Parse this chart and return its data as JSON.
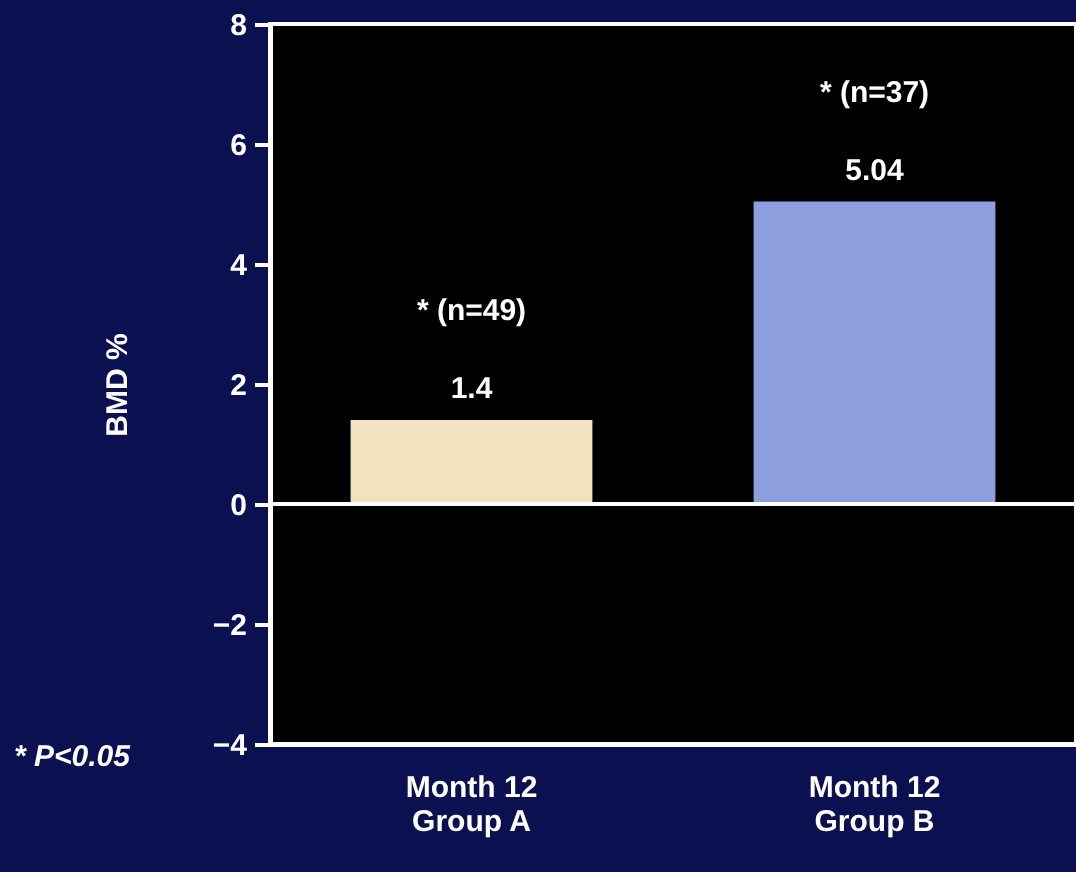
{
  "chart_data": {
    "type": "bar",
    "ylabel": "BMD %",
    "categories": [
      "Month 12\nGroup A",
      "Month 12\nGroup B"
    ],
    "values": [
      1.4,
      5.04
    ],
    "colors": [
      "#f3e2bf",
      "#8e9fe0"
    ],
    "ylim": [
      -4,
      8
    ],
    "yticks": [
      -4,
      -2,
      0,
      2,
      4,
      6,
      8
    ],
    "data_labels": true,
    "ref_lines": [
      {
        "axis": "y",
        "value": 0,
        "color": "#ffffff"
      }
    ],
    "annotations": [
      "* (n=49)",
      "* (n=37)",
      "* P<0.05"
    ],
    "grid": false
  }
}
